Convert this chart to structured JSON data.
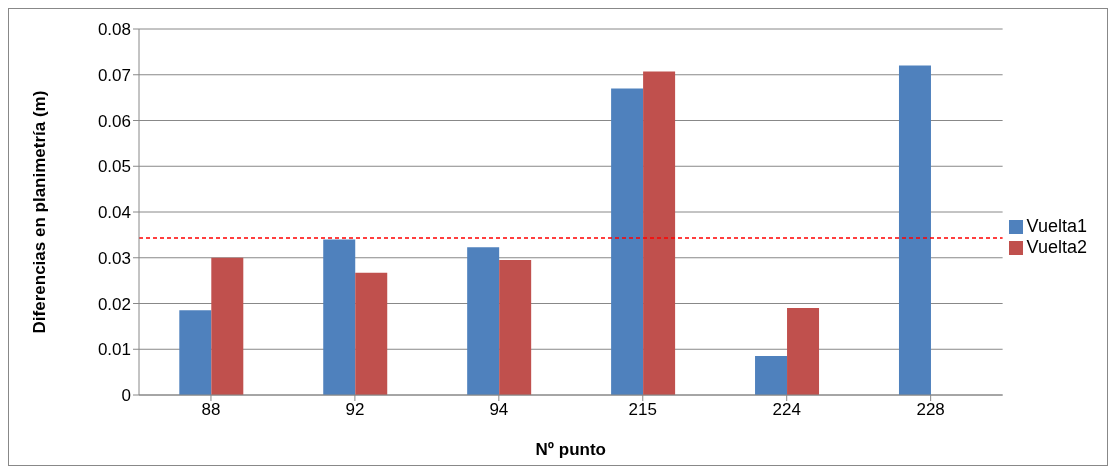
{
  "chart_data": {
    "type": "bar",
    "xlabel": "Nº punto",
    "ylabel": "Diferencias en planimetría (m)",
    "categories": [
      "88",
      "92",
      "94",
      "215",
      "224",
      "228"
    ],
    "series": [
      {
        "name": "Vuelta1",
        "color": "#4f81bd",
        "values": [
          0.0185,
          0.034,
          0.0323,
          0.067,
          0.0085,
          0.072
        ]
      },
      {
        "name": "Vuelta2",
        "color": "#c0504d",
        "values": [
          0.03,
          0.0267,
          0.0295,
          0.0707,
          0.019,
          null
        ]
      }
    ],
    "ylim": [
      0,
      0.08
    ],
    "yticks": [
      0,
      0.01,
      0.02,
      0.03,
      0.04,
      0.05,
      0.06,
      0.07,
      0.08
    ],
    "grid": "y",
    "legend": "right",
    "ref_lines": [
      {
        "axis": "y",
        "value": 0.0343,
        "color": "#ff0000",
        "line_style": "dashed"
      }
    ]
  }
}
